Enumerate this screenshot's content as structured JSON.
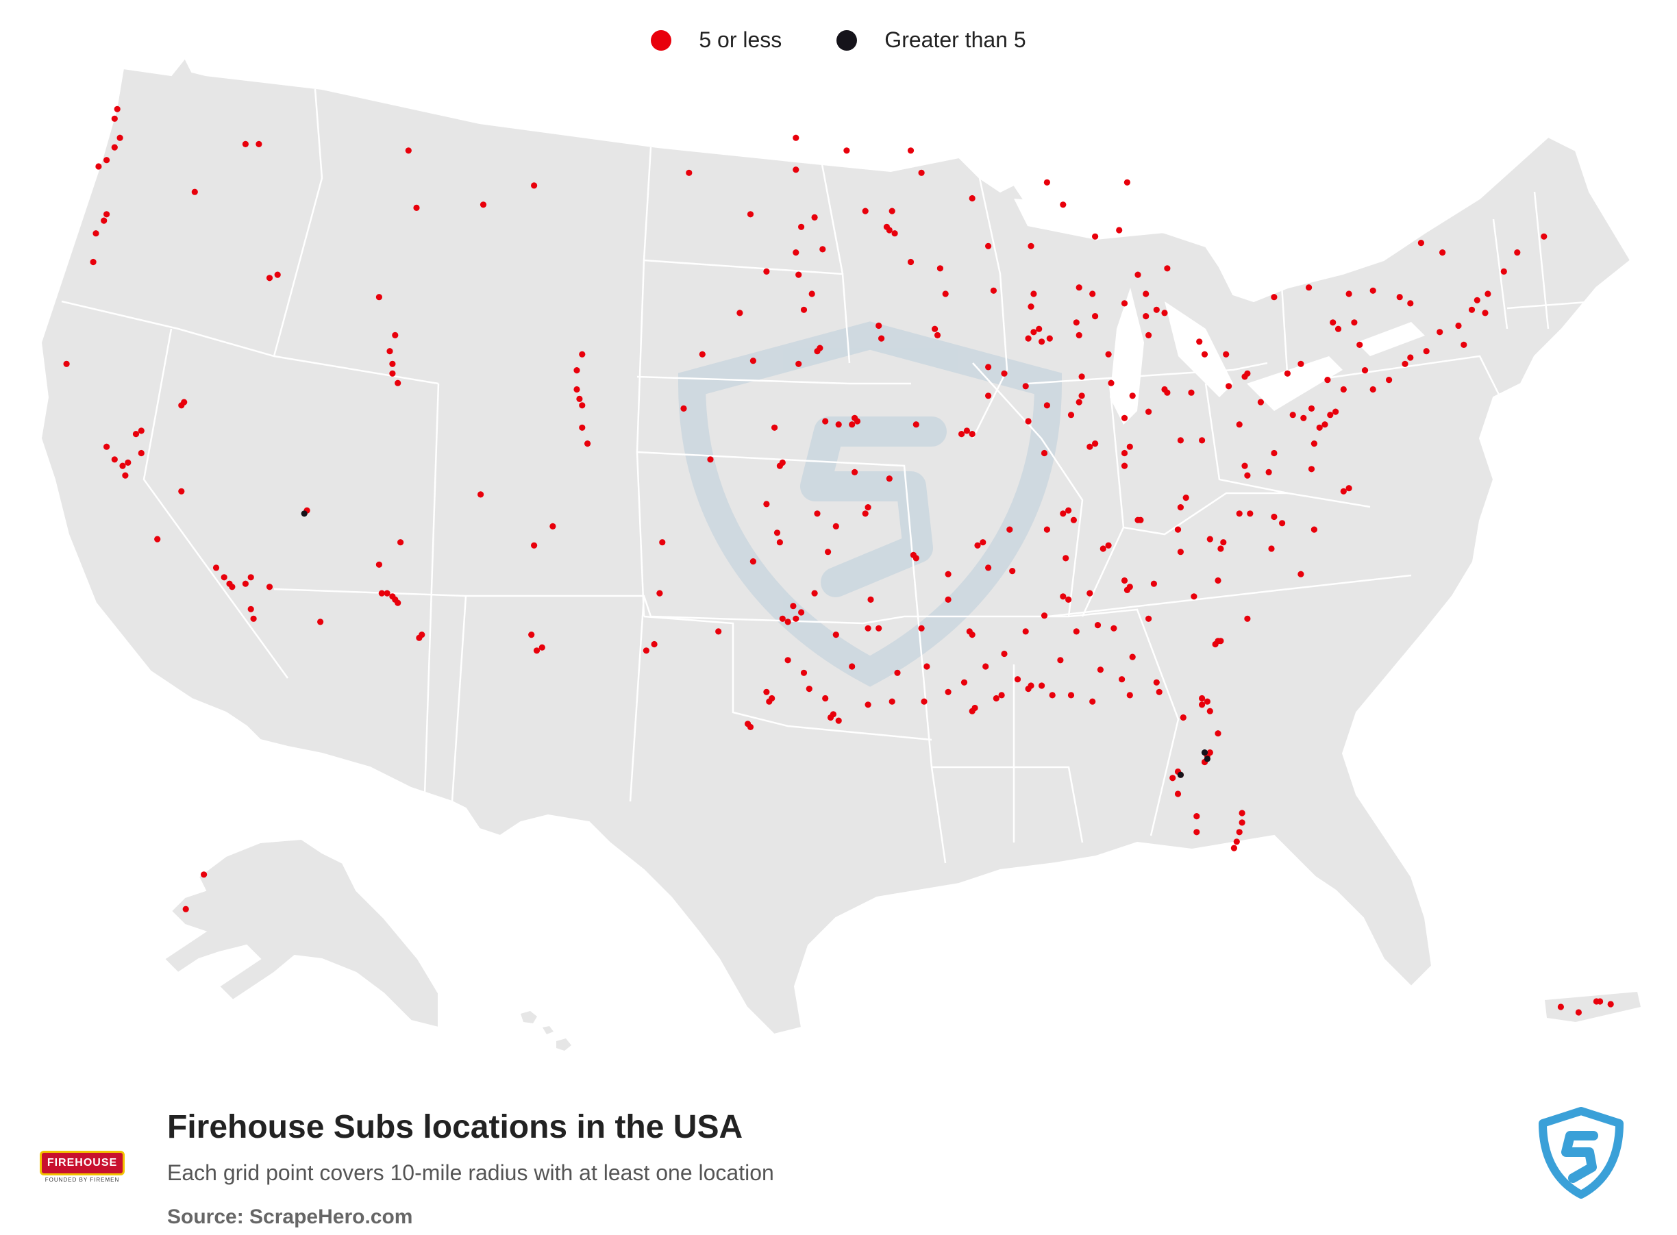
{
  "legend": {
    "items": [
      {
        "label": "5 or less",
        "color": "#e8000b"
      },
      {
        "label": "Greater than 5",
        "color": "#15131a"
      }
    ]
  },
  "footer": {
    "title": "Firehouse Subs locations in the USA",
    "subtitle": "Each grid point covers 10-mile radius with at least one location",
    "source": "Source: ScrapeHero.com"
  },
  "brand_logo": {
    "icon": "firehouse-subs-logo",
    "text": "FIREHOUSE SUBS",
    "tagline": "FOUNDED BY FIREMEN"
  },
  "watermark": {
    "icon": "scrapehero-shield-icon"
  },
  "colors": {
    "land": "#e6e6e6",
    "border": "#ffffff",
    "dot_small": "#e8000b",
    "dot_large": "#15131a",
    "shield": "#3aa0d8"
  },
  "map_data": {
    "small_points": [
      [
        -122.3,
        47.6
      ],
      [
        -122.6,
        47.2
      ],
      [
        -122.1,
        47.9
      ],
      [
        -122.3,
        48.5
      ],
      [
        -122.2,
        48.8
      ],
      [
        -122.9,
        47.0
      ],
      [
        -122.6,
        45.5
      ],
      [
        -122.7,
        45.3
      ],
      [
        -123.0,
        44.9
      ],
      [
        -123.1,
        44.0
      ],
      [
        -124.1,
        40.8
      ],
      [
        -117.4,
        47.7
      ],
      [
        -116.9,
        47.7
      ],
      [
        -116.2,
        43.6
      ],
      [
        -116.5,
        43.5
      ],
      [
        -119.3,
        46.2
      ],
      [
        -111.9,
        40.8
      ],
      [
        -111.9,
        40.5
      ],
      [
        -111.7,
        40.2
      ],
      [
        -112.0,
        41.2
      ],
      [
        -111.8,
        41.7
      ],
      [
        -112.4,
        42.9
      ],
      [
        -111.0,
        45.7
      ],
      [
        -111.3,
        47.5
      ],
      [
        -108.5,
        45.8
      ],
      [
        -106.6,
        46.4
      ],
      [
        -104.8,
        41.1
      ],
      [
        -105.0,
        40.6
      ],
      [
        -105.0,
        40.0
      ],
      [
        -104.9,
        39.7
      ],
      [
        -104.8,
        39.5
      ],
      [
        -104.8,
        38.8
      ],
      [
        -104.6,
        38.3
      ],
      [
        -100.8,
        46.8
      ],
      [
        -96.8,
        46.9
      ],
      [
        -96.7,
        43.6
      ],
      [
        -96.8,
        44.3
      ],
      [
        -96.6,
        45.1
      ],
      [
        -96.5,
        42.5
      ],
      [
        -95.9,
        41.3
      ],
      [
        -96.0,
        41.2
      ],
      [
        -96.7,
        40.8
      ],
      [
        -98.4,
        40.9
      ],
      [
        -97.6,
        38.8
      ],
      [
        -97.3,
        37.7
      ],
      [
        -97.4,
        37.6
      ],
      [
        -95.7,
        39.0
      ],
      [
        -94.6,
        39.1
      ],
      [
        -94.5,
        39.0
      ],
      [
        -94.7,
        38.9
      ],
      [
        -95.2,
        38.9
      ],
      [
        -94.6,
        37.4
      ],
      [
        -93.3,
        37.2
      ],
      [
        -92.3,
        38.9
      ],
      [
        -90.2,
        38.6
      ],
      [
        -90.4,
        38.7
      ],
      [
        -90.6,
        38.6
      ],
      [
        -89.6,
        39.8
      ],
      [
        -89.0,
        40.5
      ],
      [
        -88.2,
        40.1
      ],
      [
        -89.6,
        40.7
      ],
      [
        -91.5,
        41.7
      ],
      [
        -91.6,
        41.9
      ],
      [
        -93.6,
        41.6
      ],
      [
        -93.7,
        42.0
      ],
      [
        -92.5,
        44.0
      ],
      [
        -93.3,
        45.0
      ],
      [
        -93.1,
        44.9
      ],
      [
        -93.4,
        45.1
      ],
      [
        -93.2,
        45.6
      ],
      [
        -94.2,
        45.6
      ],
      [
        -92.1,
        46.8
      ],
      [
        -91.4,
        43.8
      ],
      [
        -91.2,
        43.0
      ],
      [
        -89.4,
        43.1
      ],
      [
        -89.6,
        44.5
      ],
      [
        -88.0,
        44.5
      ],
      [
        -87.9,
        43.0
      ],
      [
        -88.0,
        42.6
      ],
      [
        -87.7,
        41.9
      ],
      [
        -87.9,
        41.8
      ],
      [
        -88.1,
        41.6
      ],
      [
        -87.6,
        41.5
      ],
      [
        -87.3,
        41.6
      ],
      [
        -86.2,
        41.7
      ],
      [
        -85.6,
        42.3
      ],
      [
        -85.7,
        43.0
      ],
      [
        -84.5,
        42.7
      ],
      [
        -83.7,
        42.3
      ],
      [
        -83.3,
        42.5
      ],
      [
        -83.0,
        42.4
      ],
      [
        -83.7,
        43.0
      ],
      [
        -84.0,
        43.6
      ],
      [
        -85.6,
        44.8
      ],
      [
        -84.7,
        45.0
      ],
      [
        -86.2,
        43.2
      ],
      [
        -86.1,
        39.8
      ],
      [
        -86.2,
        39.6
      ],
      [
        -85.1,
        41.1
      ],
      [
        -86.1,
        40.4
      ],
      [
        -87.5,
        38.0
      ],
      [
        -85.8,
        38.2
      ],
      [
        -85.6,
        38.3
      ],
      [
        -84.5,
        38.0
      ],
      [
        -84.5,
        37.6
      ],
      [
        -84.3,
        38.2
      ],
      [
        -84.5,
        39.1
      ],
      [
        -84.2,
        39.8
      ],
      [
        -83.0,
        40.0
      ],
      [
        -82.9,
        39.9
      ],
      [
        -81.7,
        41.5
      ],
      [
        -81.5,
        41.1
      ],
      [
        -83.6,
        41.7
      ],
      [
        -80.7,
        41.1
      ],
      [
        -80.0,
        40.4
      ],
      [
        -79.9,
        40.5
      ],
      [
        -78.4,
        40.5
      ],
      [
        -77.9,
        40.8
      ],
      [
        -76.9,
        40.3
      ],
      [
        -76.3,
        40.0
      ],
      [
        -75.2,
        40.0
      ],
      [
        -75.5,
        40.6
      ],
      [
        -74.6,
        40.3
      ],
      [
        -74.0,
        40.8
      ],
      [
        -73.8,
        41.0
      ],
      [
        -77.6,
        43.2
      ],
      [
        -76.1,
        43.0
      ],
      [
        -78.9,
        42.9
      ],
      [
        -75.2,
        43.1
      ],
      [
        -73.8,
        42.7
      ],
      [
        -71.5,
        42.5
      ],
      [
        -71.3,
        42.8
      ],
      [
        -70.9,
        43.0
      ],
      [
        -71.0,
        42.4
      ],
      [
        -70.3,
        43.7
      ],
      [
        -69.8,
        44.3
      ],
      [
        -68.8,
        44.8
      ],
      [
        -77.0,
        38.9
      ],
      [
        -77.2,
        38.8
      ],
      [
        -76.6,
        39.3
      ],
      [
        -76.8,
        39.2
      ],
      [
        -77.5,
        39.4
      ],
      [
        -77.4,
        38.3
      ],
      [
        -77.5,
        37.5
      ],
      [
        -76.3,
        36.8
      ],
      [
        -76.1,
        36.9
      ],
      [
        -79.9,
        37.3
      ],
      [
        -78.9,
        38.0
      ],
      [
        -80.6,
        40.1
      ],
      [
        -81.6,
        38.4
      ],
      [
        -82.4,
        38.4
      ],
      [
        -80.2,
        38.9
      ],
      [
        -78.9,
        36.0
      ],
      [
        -78.6,
        35.8
      ],
      [
        -79.8,
        36.1
      ],
      [
        -80.2,
        36.1
      ],
      [
        -80.8,
        35.2
      ],
      [
        -80.9,
        35.0
      ],
      [
        -81.3,
        35.3
      ],
      [
        -82.5,
        35.6
      ],
      [
        -77.9,
        34.2
      ],
      [
        -77.4,
        35.6
      ],
      [
        -79.0,
        35.0
      ],
      [
        -79.9,
        32.8
      ],
      [
        -81.0,
        32.1
      ],
      [
        -81.1,
        32.0
      ],
      [
        -80.9,
        32.1
      ],
      [
        -81.0,
        34.0
      ],
      [
        -82.4,
        34.9
      ],
      [
        -81.9,
        33.5
      ],
      [
        -83.4,
        33.9
      ],
      [
        -84.4,
        33.7
      ],
      [
        -84.3,
        33.8
      ],
      [
        -84.5,
        34.0
      ],
      [
        -83.6,
        32.8
      ],
      [
        -84.9,
        32.5
      ],
      [
        -84.2,
        31.6
      ],
      [
        -83.3,
        30.8
      ],
      [
        -81.6,
        30.3
      ],
      [
        -81.4,
        30.2
      ],
      [
        -81.6,
        30.1
      ],
      [
        -81.0,
        29.2
      ],
      [
        -81.3,
        29.9
      ],
      [
        -82.3,
        29.7
      ],
      [
        -81.4,
        28.5
      ],
      [
        -81.3,
        28.6
      ],
      [
        -81.5,
        28.3
      ],
      [
        -82.5,
        28.0
      ],
      [
        -82.7,
        27.8
      ],
      [
        -82.4,
        27.9
      ],
      [
        -82.5,
        27.3
      ],
      [
        -81.8,
        26.6
      ],
      [
        -81.8,
        26.1
      ],
      [
        -80.1,
        26.7
      ],
      [
        -80.1,
        26.4
      ],
      [
        -80.2,
        26.1
      ],
      [
        -80.3,
        25.8
      ],
      [
        -80.4,
        25.6
      ],
      [
        -84.3,
        30.4
      ],
      [
        -85.7,
        30.2
      ],
      [
        -86.5,
        30.4
      ],
      [
        -87.2,
        30.4
      ],
      [
        -87.6,
        30.7
      ],
      [
        -88.0,
        30.7
      ],
      [
        -88.1,
        30.6
      ],
      [
        -89.1,
        30.4
      ],
      [
        -89.3,
        30.3
      ],
      [
        -90.1,
        30.0
      ],
      [
        -90.2,
        29.9
      ],
      [
        -91.1,
        30.5
      ],
      [
        -92.0,
        30.2
      ],
      [
        -93.2,
        30.2
      ],
      [
        -94.1,
        30.1
      ],
      [
        -95.4,
        29.8
      ],
      [
        -95.5,
        29.7
      ],
      [
        -95.2,
        29.6
      ],
      [
        -95.7,
        30.3
      ],
      [
        -96.3,
        30.6
      ],
      [
        -97.7,
        30.3
      ],
      [
        -97.8,
        30.2
      ],
      [
        -97.9,
        30.5
      ],
      [
        -98.5,
        29.4
      ],
      [
        -98.6,
        29.5
      ],
      [
        -97.1,
        31.5
      ],
      [
        -97.3,
        32.8
      ],
      [
        -96.8,
        32.8
      ],
      [
        -96.6,
        33.0
      ],
      [
        -96.9,
        33.2
      ],
      [
        -97.1,
        32.7
      ],
      [
        -95.3,
        32.3
      ],
      [
        -94.1,
        32.5
      ],
      [
        -93.7,
        32.5
      ],
      [
        -92.1,
        32.5
      ],
      [
        -91.1,
        33.4
      ],
      [
        -90.2,
        32.3
      ],
      [
        -90.3,
        32.4
      ],
      [
        -89.6,
        34.4
      ],
      [
        -88.7,
        34.3
      ],
      [
        -90.0,
        35.1
      ],
      [
        -89.8,
        35.2
      ],
      [
        -88.8,
        35.6
      ],
      [
        -87.4,
        35.6
      ],
      [
        -86.8,
        36.1
      ],
      [
        -86.6,
        36.2
      ],
      [
        -86.4,
        35.9
      ],
      [
        -85.3,
        35.0
      ],
      [
        -85.1,
        35.1
      ],
      [
        -84.0,
        35.9
      ],
      [
        -83.9,
        35.9
      ],
      [
        -82.4,
        36.3
      ],
      [
        -82.2,
        36.6
      ],
      [
        -86.7,
        34.7
      ],
      [
        -86.8,
        33.5
      ],
      [
        -86.6,
        33.4
      ],
      [
        -85.8,
        33.6
      ],
      [
        -86.3,
        32.4
      ],
      [
        -85.5,
        32.6
      ],
      [
        -88.2,
        32.4
      ],
      [
        -88.5,
        30.9
      ],
      [
        -91.1,
        34.2
      ],
      [
        -92.3,
        34.7
      ],
      [
        -92.4,
        34.8
      ],
      [
        -94.2,
        36.1
      ],
      [
        -94.1,
        36.3
      ],
      [
        -96.0,
        36.1
      ],
      [
        -97.5,
        35.5
      ],
      [
        -97.4,
        35.2
      ],
      [
        -98.4,
        34.6
      ],
      [
        -99.7,
        32.4
      ],
      [
        -101.9,
        33.6
      ],
      [
        -101.8,
        35.2
      ],
      [
        -102.1,
        32.0
      ],
      [
        -102.4,
        31.8
      ],
      [
        -106.5,
        31.8
      ],
      [
        -106.3,
        31.9
      ],
      [
        -106.7,
        32.3
      ],
      [
        -106.6,
        35.1
      ],
      [
        -105.9,
        35.7
      ],
      [
        -108.6,
        36.7
      ],
      [
        -111.9,
        33.5
      ],
      [
        -112.1,
        33.6
      ],
      [
        -111.8,
        33.4
      ],
      [
        -111.7,
        33.3
      ],
      [
        -112.3,
        33.6
      ],
      [
        -111.6,
        35.2
      ],
      [
        -110.9,
        32.2
      ],
      [
        -110.8,
        32.3
      ],
      [
        -112.4,
        34.5
      ],
      [
        -114.6,
        32.7
      ],
      [
        -115.1,
        36.2
      ],
      [
        -117.1,
        32.8
      ],
      [
        -117.2,
        33.1
      ],
      [
        -117.4,
        33.9
      ],
      [
        -117.2,
        34.1
      ],
      [
        -117.9,
        33.8
      ],
      [
        -118.2,
        34.1
      ],
      [
        -118.0,
        33.9
      ],
      [
        -118.5,
        34.4
      ],
      [
        -116.5,
        33.8
      ],
      [
        -119.8,
        36.8
      ],
      [
        -120.7,
        35.3
      ],
      [
        -121.5,
        38.6
      ],
      [
        -121.3,
        38.7
      ],
      [
        -121.9,
        37.3
      ],
      [
        -122.0,
        37.6
      ],
      [
        -122.3,
        37.8
      ],
      [
        -121.8,
        37.7
      ],
      [
        -121.3,
        38.0
      ],
      [
        -122.6,
        38.2
      ],
      [
        -119.8,
        39.5
      ],
      [
        -119.7,
        39.6
      ],
      [
        -149.9,
        61.2
      ],
      [
        -147.7,
        64.8
      ],
      [
        -66.1,
        18.4
      ],
      [
        -66.0,
        18.4
      ],
      [
        -66.6,
        18.0
      ],
      [
        -67.1,
        18.2
      ],
      [
        -65.7,
        18.3
      ],
      [
        -83.2,
        30.5
      ],
      [
        -84.6,
        30.9
      ],
      [
        -85.4,
        31.2
      ],
      [
        -86.9,
        31.5
      ],
      [
        -87.5,
        32.9
      ],
      [
        -89.7,
        31.3
      ],
      [
        -89.0,
        31.7
      ],
      [
        -90.5,
        30.8
      ],
      [
        -91.9,
        31.3
      ],
      [
        -93.0,
        31.1
      ],
      [
        -94.7,
        31.3
      ],
      [
        -96.5,
        31.1
      ],
      [
        -96.1,
        33.6
      ],
      [
        -94.0,
        33.4
      ],
      [
        -95.6,
        34.9
      ],
      [
        -95.3,
        35.7
      ],
      [
        -97.9,
        36.4
      ],
      [
        -100.0,
        37.8
      ],
      [
        -101.0,
        39.4
      ],
      [
        -100.3,
        41.1
      ],
      [
        -98.9,
        42.4
      ],
      [
        -96.2,
        43.0
      ],
      [
        -97.9,
        43.7
      ],
      [
        -95.8,
        44.4
      ],
      [
        -96.1,
        45.4
      ],
      [
        -98.5,
        45.5
      ],
      [
        -96.8,
        47.9
      ],
      [
        -94.9,
        47.5
      ],
      [
        -92.5,
        47.5
      ],
      [
        -90.2,
        46.0
      ],
      [
        -87.4,
        46.5
      ],
      [
        -86.8,
        45.8
      ],
      [
        -84.4,
        46.5
      ],
      [
        -82.9,
        43.8
      ],
      [
        -86.3,
        42.1
      ],
      [
        -88.1,
        39.0
      ],
      [
        -87.4,
        39.5
      ],
      [
        -86.5,
        39.2
      ],
      [
        -85.0,
        40.2
      ],
      [
        -83.6,
        39.3
      ],
      [
        -82.0,
        39.9
      ],
      [
        -80.0,
        37.6
      ],
      [
        -79.1,
        37.4
      ],
      [
        -77.8,
        39.1
      ],
      [
        -78.2,
        39.2
      ],
      [
        -79.4,
        39.6
      ],
      [
        -76.7,
        42.1
      ],
      [
        -75.9,
        42.1
      ],
      [
        -74.2,
        42.9
      ],
      [
        -73.4,
        44.6
      ],
      [
        -72.6,
        44.3
      ],
      [
        -72.0,
        42.0
      ],
      [
        -72.7,
        41.8
      ],
      [
        -73.2,
        41.2
      ],
      [
        -71.8,
        41.4
      ],
      [
        -75.7,
        41.4
      ],
      [
        -76.5,
        41.9
      ]
    ],
    "large_points": [
      [
        -81.5,
        28.6
      ],
      [
        -81.4,
        28.4
      ],
      [
        -82.4,
        27.9
      ],
      [
        -115.2,
        36.1
      ]
    ]
  }
}
